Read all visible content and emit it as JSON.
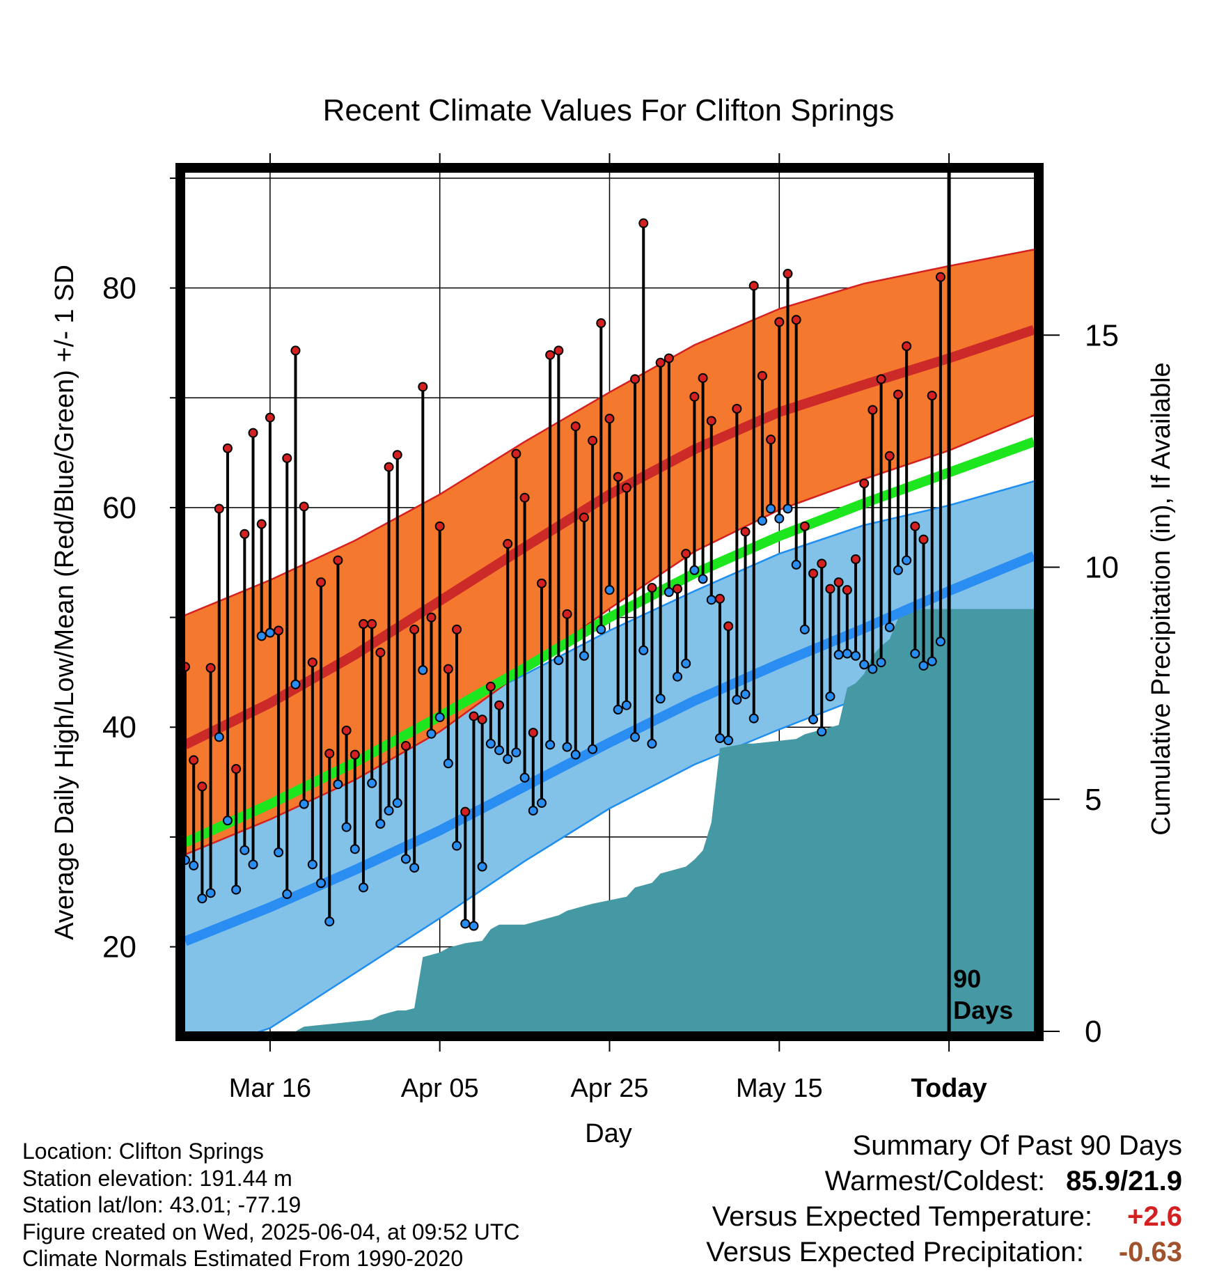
{
  "title": "Recent Climate Values For Clifton Springs",
  "chart_data": {
    "type": "line",
    "title": "Recent Climate Values For Clifton Springs",
    "xlabel": "Day",
    "ylabel": "Average Daily High/Low/Mean (Red/Blue/Green) +/- 1 SD",
    "y2label": "Cumulative Precipitation (in), If Available",
    "ylim": [
      12.3,
      90.5
    ],
    "y2lim": [
      0,
      18.5
    ],
    "xlim": [
      0,
      100
    ],
    "yticks": [
      20,
      40,
      60,
      80
    ],
    "yticks_minor": [
      30,
      50,
      70,
      90
    ],
    "y2ticks": [
      0,
      5,
      10,
      15
    ],
    "xticks": [
      {
        "day": 10,
        "label": "Mar 16"
      },
      {
        "day": 30,
        "label": "Apr 05"
      },
      {
        "day": 50,
        "label": "Apr 25"
      },
      {
        "day": 70,
        "label": "May 15"
      },
      {
        "day": 90,
        "label": "Today"
      }
    ],
    "today_marker": {
      "day": 90,
      "label_line1": "90",
      "label_line2": "Days"
    },
    "grid": true,
    "normals": {
      "days": [
        0,
        10,
        20,
        30,
        40,
        50,
        60,
        70,
        80,
        90,
        100
      ],
      "high_mean": [
        38.4,
        42.2,
        46.6,
        51.5,
        56.4,
        61.2,
        65.3,
        68.7,
        71.2,
        73.6,
        76.2
      ],
      "high_sd_upper": [
        50.2,
        53.4,
        57.0,
        61.2,
        66.0,
        70.5,
        74.8,
        78.1,
        80.4,
        82.0,
        83.5
      ],
      "high_sd_lower": [
        28.4,
        31.6,
        35.2,
        39.6,
        45.2,
        50.8,
        56.0,
        59.8,
        62.6,
        65.2,
        68.4
      ],
      "low_mean": [
        20.5,
        23.6,
        27.0,
        30.6,
        34.6,
        38.6,
        42.4,
        45.8,
        49.0,
        52.4,
        55.6
      ],
      "low_sd_upper": [
        32.1,
        34.4,
        37.8,
        41.0,
        44.8,
        48.8,
        52.4,
        55.8,
        58.4,
        60.2,
        62.4
      ],
      "low_sd_lower": [
        10.0,
        12.6,
        17.6,
        22.6,
        27.8,
        32.6,
        36.6,
        39.8,
        42.8,
        45.8,
        48.8
      ],
      "mean": [
        29.5,
        33.0,
        36.8,
        41.0,
        45.4,
        50.0,
        54.0,
        57.4,
        60.4,
        63.2,
        66.0
      ]
    },
    "daily_high": [
      45.5,
      37.0,
      34.6,
      45.4,
      59.9,
      65.4,
      36.2,
      57.6,
      66.8,
      58.5,
      68.2,
      48.8,
      64.5,
      74.3,
      60.1,
      45.9,
      53.2,
      37.6,
      55.2,
      39.7,
      37.5,
      49.4,
      49.4,
      46.8,
      63.7,
      64.8,
      38.3,
      48.9,
      71.0,
      50.0,
      58.3,
      45.3,
      48.9,
      32.3,
      41.0,
      40.7,
      43.7,
      42.0,
      56.7,
      64.9,
      60.9,
      39.5,
      53.1,
      73.9,
      74.3,
      50.3,
      67.4,
      59.1,
      66.1,
      76.8,
      68.1,
      62.8,
      61.8,
      71.7,
      85.9,
      52.7,
      73.2,
      73.6,
      52.6,
      55.8,
      70.1,
      71.8,
      67.9,
      51.7,
      49.2,
      69.0,
      57.8,
      80.2,
      72.0,
      66.2,
      76.9,
      81.3,
      77.1,
      58.3,
      54.0,
      54.9,
      52.6,
      53.2,
      52.5,
      55.3,
      62.2,
      68.9,
      71.7,
      64.7,
      70.3,
      74.7,
      58.3,
      57.1,
      70.2,
      81.0
    ],
    "daily_low": [
      27.9,
      27.4,
      24.4,
      24.9,
      39.1,
      31.5,
      25.2,
      28.8,
      27.5,
      48.3,
      48.6,
      28.6,
      24.8,
      43.9,
      33.0,
      27.5,
      25.8,
      22.3,
      34.8,
      30.9,
      28.9,
      25.4,
      34.9,
      31.2,
      32.4,
      33.1,
      28.0,
      27.2,
      45.2,
      39.4,
      40.9,
      36.7,
      29.2,
      22.1,
      21.9,
      27.3,
      38.5,
      37.9,
      37.1,
      37.7,
      35.4,
      32.4,
      33.1,
      38.4,
      46.1,
      38.2,
      37.5,
      46.5,
      38.0,
      48.9,
      52.5,
      41.6,
      42.0,
      39.1,
      47.0,
      38.5,
      42.6,
      52.3,
      44.6,
      45.8,
      54.3,
      53.5,
      51.6,
      39.0,
      38.8,
      42.5,
      43.0,
      40.8,
      58.8,
      59.9,
      59.0,
      59.9,
      54.8,
      48.9,
      40.7,
      39.6,
      42.8,
      46.6,
      46.7,
      46.5,
      45.7,
      45.3,
      45.9,
      49.1,
      54.3,
      55.2,
      46.7,
      45.6,
      46.0,
      47.8
    ],
    "cumulative_precip": {
      "days": [
        0,
        13,
        14,
        22,
        23,
        24,
        25,
        26,
        27,
        28,
        30,
        31,
        33,
        35,
        36,
        37,
        40,
        44,
        45,
        47,
        48,
        52,
        53,
        54,
        55,
        56,
        58,
        59,
        60,
        61,
        62,
        63,
        66,
        67,
        72,
        73,
        75,
        77,
        78,
        79,
        80,
        81,
        82,
        83,
        84,
        85,
        86,
        100
      ],
      "values": [
        0,
        0,
        0.1,
        0.25,
        0.35,
        0.4,
        0.45,
        0.45,
        0.5,
        1.6,
        1.7,
        1.8,
        1.9,
        1.95,
        2.2,
        2.3,
        2.3,
        2.5,
        2.6,
        2.7,
        2.75,
        2.9,
        3.1,
        3.15,
        3.2,
        3.4,
        3.5,
        3.55,
        3.7,
        3.9,
        4.5,
        6.1,
        6.2,
        6.2,
        6.3,
        6.4,
        6.5,
        6.6,
        7.4,
        7.5,
        7.7,
        8.1,
        8.3,
        8.45,
        8.9,
        9.0,
        9.1,
        9.1
      ]
    },
    "colors": {
      "high_band": "#f4782d",
      "high_band_edge": "#d42020",
      "high_mean": "#cc2929",
      "low_band": "#82c1e8",
      "low_band_edge": "#1e8ef0",
      "low_mean": "#2a8df2",
      "mean_line": "#1ee61e",
      "precip": "#4499a4",
      "high_dot": "#d42020",
      "low_dot": "#2a8df2"
    }
  },
  "info": {
    "location": "Location: Clifton Springs",
    "elevation": "Station elevation: 191.44 m",
    "latlon": "Station lat/lon: 43.01; -77.19",
    "created": "Figure created on Wed, 2025-06-04, at 09:52 UTC",
    "normals": "Climate Normals Estimated From 1990-2020"
  },
  "summary": {
    "heading": "Summary Of Past 90 Days",
    "warm_cold_label": "Warmest/Coldest:",
    "warm_cold_value": "85.9/21.9",
    "temp_label": "Versus Expected Temperature:",
    "temp_value": "+2.6",
    "precip_label": "Versus Expected Precipitation:",
    "precip_value": "-0.63"
  }
}
